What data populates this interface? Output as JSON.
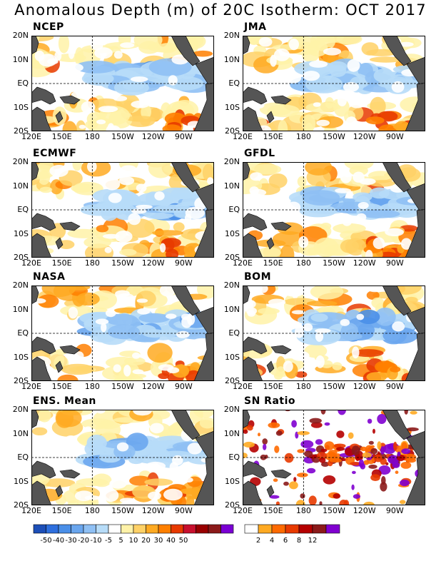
{
  "title": "Anomalous Depth (m) of 20C Isotherm: OCT 2017",
  "lat_labels": [
    "20N",
    "10N",
    "EQ",
    "10S",
    "20S"
  ],
  "lon_labels": [
    "120E",
    "150E",
    "180",
    "150W",
    "120W",
    "90W"
  ],
  "panels": [
    {
      "label": "NCEP",
      "kind": "anom",
      "seed": 11
    },
    {
      "label": "JMA",
      "kind": "anom",
      "seed": 23
    },
    {
      "label": "ECMWF",
      "kind": "anom",
      "seed": 37
    },
    {
      "label": "GFDL",
      "kind": "anom",
      "seed": 41
    },
    {
      "label": "NASA",
      "kind": "anom",
      "seed": 53
    },
    {
      "label": "BOM",
      "kind": "anom",
      "seed": 67
    },
    {
      "label": "ENS. Mean",
      "kind": "anom",
      "seed": 79
    },
    {
      "label": "SN Ratio",
      "kind": "snr",
      "seed": 97
    }
  ],
  "anom_colorbar": {
    "colors": [
      "#1d4fb8",
      "#2e6fde",
      "#4a8fe8",
      "#6aa6ee",
      "#8fc0f4",
      "#b7dcf8",
      "#ffffff",
      "#fff2a8",
      "#ffd166",
      "#ffaa22",
      "#ff7f00",
      "#e83a00",
      "#c8102e",
      "#990000",
      "#8b1a1a",
      "#7a00d4"
    ],
    "labels": [
      "-50",
      "-40",
      "-30",
      "-20",
      "-10",
      "-5",
      "5",
      "10",
      "20",
      "30",
      "40",
      "50"
    ]
  },
  "snr_colorbar": {
    "colors": [
      "#ffffff",
      "#ffaa22",
      "#ff6a00",
      "#e83a00",
      "#b50000",
      "#8b1a1a",
      "#8000d0"
    ],
    "labels": [
      "2",
      "4",
      "6",
      "8",
      "12"
    ]
  },
  "colors": {
    "land": "#555555",
    "background": "#ffffff"
  }
}
